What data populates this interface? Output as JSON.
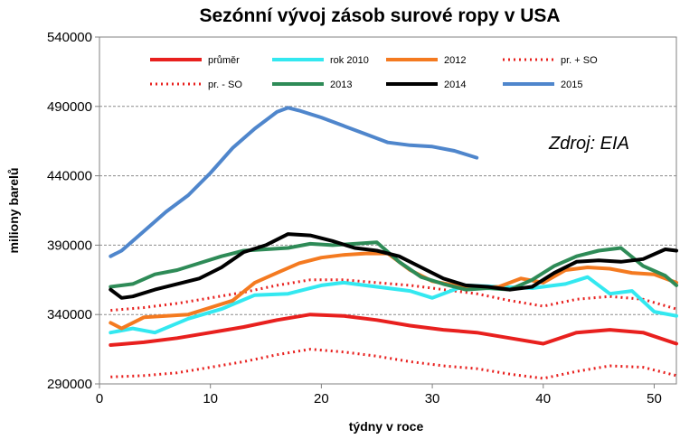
{
  "chart_data": {
    "type": "line",
    "title": "Sezónní vývoj zásob surové ropy v USA",
    "xlabel": "týdny v roce",
    "ylabel": "miliony barelů",
    "annotation": "Zdroj: EIA",
    "xlim": [
      0,
      52
    ],
    "ylim": [
      290000,
      540000
    ],
    "x_ticks": [
      "0",
      "10",
      "20",
      "30",
      "40",
      "50"
    ],
    "y_ticks": [
      "290000",
      "340000",
      "390000",
      "440000",
      "490000",
      "540000"
    ],
    "grid": "horizontal dashed",
    "legend_position": "top",
    "series": [
      {
        "name": "průměr",
        "color": "#e8201e",
        "dash": "solid",
        "x": [
          1,
          4,
          7,
          10,
          13,
          16,
          19,
          22,
          25,
          28,
          31,
          34,
          37,
          40,
          43,
          46,
          49,
          52
        ],
        "values": [
          318000,
          320000,
          323000,
          327000,
          331000,
          336000,
          340000,
          339000,
          336000,
          332000,
          329000,
          327000,
          323000,
          319000,
          327000,
          329000,
          327000,
          319000
        ]
      },
      {
        "name": "rok 2010",
        "color": "#33e8f0",
        "dash": "solid",
        "x": [
          1,
          3,
          5,
          8,
          11,
          14,
          17,
          20,
          22,
          25,
          28,
          30,
          33,
          36,
          39,
          42,
          44,
          46,
          48,
          50,
          52
        ],
        "values": [
          327000,
          330000,
          327000,
          337000,
          344000,
          354000,
          355000,
          361000,
          363000,
          360000,
          357000,
          352000,
          361000,
          360000,
          359000,
          362000,
          367000,
          355000,
          357000,
          342000,
          339000
        ]
      },
      {
        "name": "2012",
        "color": "#f47a20",
        "dash": "solid",
        "x": [
          1,
          2,
          4,
          6,
          8,
          10,
          12,
          14,
          16,
          18,
          20,
          22,
          24,
          26,
          28,
          30,
          32,
          34,
          36,
          38,
          40,
          42,
          44,
          46,
          48,
          50,
          52
        ],
        "values": [
          334000,
          330000,
          338000,
          339000,
          340000,
          345000,
          350000,
          363000,
          370000,
          377000,
          381000,
          383000,
          384000,
          384000,
          372000,
          364000,
          361000,
          359000,
          360000,
          366000,
          363000,
          372000,
          374000,
          373000,
          370000,
          369000,
          363000
        ]
      },
      {
        "name": "pr. + SO",
        "color": "#e8201e",
        "dash": "dotted",
        "x": [
          1,
          4,
          7,
          10,
          13,
          16,
          19,
          22,
          25,
          28,
          31,
          34,
          37,
          40,
          43,
          46,
          49,
          52
        ],
        "values": [
          343000,
          345000,
          348000,
          352000,
          356000,
          361000,
          365000,
          365000,
          363000,
          361000,
          358000,
          355000,
          350000,
          346000,
          351000,
          353000,
          351000,
          344000
        ]
      },
      {
        "name": "pr. - SO",
        "color": "#e8201e",
        "dash": "dotted",
        "x": [
          1,
          4,
          7,
          10,
          13,
          16,
          19,
          22,
          25,
          28,
          31,
          34,
          37,
          40,
          43,
          46,
          49,
          52
        ],
        "values": [
          295000,
          296000,
          298000,
          302000,
          306000,
          311000,
          315000,
          313000,
          310000,
          306000,
          303000,
          301000,
          297000,
          294000,
          299000,
          303000,
          302000,
          296000
        ]
      },
      {
        "name": "2013",
        "color": "#2e8b57",
        "dash": "solid",
        "x": [
          1,
          3,
          5,
          7,
          9,
          11,
          13,
          15,
          17,
          19,
          21,
          23,
          25,
          27,
          29,
          31,
          33,
          35,
          37,
          39,
          41,
          43,
          45,
          47,
          49,
          51,
          52
        ],
        "values": [
          360000,
          362000,
          369000,
          372000,
          377000,
          382000,
          386000,
          387000,
          388000,
          391000,
          390000,
          391000,
          392000,
          378000,
          367000,
          362000,
          358000,
          359000,
          358000,
          365000,
          375000,
          382000,
          386000,
          388000,
          375000,
          368000,
          361000
        ]
      },
      {
        "name": "2014",
        "color": "#000000",
        "dash": "solid",
        "x": [
          1,
          2,
          3,
          5,
          7,
          9,
          11,
          13,
          15,
          17,
          19,
          21,
          23,
          25,
          27,
          29,
          31,
          33,
          35,
          37,
          39,
          41,
          43,
          45,
          47,
          49,
          51,
          52
        ],
        "values": [
          358000,
          352000,
          353000,
          358000,
          362000,
          366000,
          374000,
          385000,
          390000,
          398000,
          397000,
          393000,
          388000,
          386000,
          382000,
          374000,
          366000,
          361000,
          360000,
          358000,
          360000,
          370000,
          378000,
          379000,
          378000,
          380000,
          387000,
          386000
        ]
      },
      {
        "name": "2015",
        "color": "#4f86cc",
        "dash": "solid",
        "x": [
          1,
          2,
          4,
          6,
          8,
          10,
          12,
          14,
          16,
          17,
          18,
          20,
          22,
          24,
          26,
          28,
          30,
          32,
          34
        ],
        "values": [
          382000,
          386000,
          400000,
          414000,
          426000,
          442000,
          460000,
          474000,
          486000,
          489000,
          487000,
          482000,
          476000,
          470000,
          464000,
          462000,
          461000,
          458000,
          453000
        ]
      }
    ]
  }
}
